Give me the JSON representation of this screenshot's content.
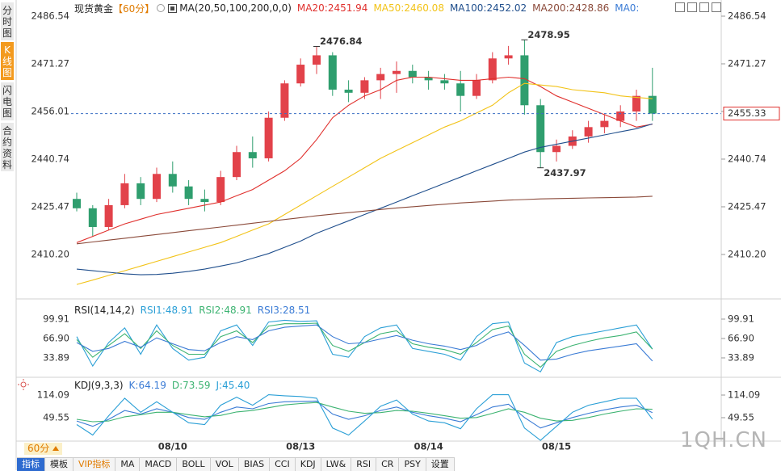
{
  "sidebar": {
    "tabs": [
      "分时图",
      "K线图",
      "闪电图",
      "合约资料"
    ],
    "active": 1
  },
  "toolbar": {
    "items": [
      "指标",
      "模板",
      "VIP指标",
      "MA",
      "MACD",
      "BOLL",
      "VOL",
      "BIAS",
      "CCI",
      "KDJ",
      "LW&",
      "RSI",
      "CR",
      "PSY",
      "设置"
    ],
    "active": 0
  },
  "period_selector": "60分",
  "watermark": "1QH.CN",
  "separator": ":",
  "chart_data": [
    {
      "type": "candlestick",
      "title": "现货黄金",
      "period": "【60分】",
      "indicator": "MA(20,50,100,200,0,0)",
      "extra_legend": "MA0:",
      "categories": [
        null,
        null,
        null,
        null,
        null,
        null,
        "08/10",
        null,
        null,
        null,
        null,
        null,
        null,
        null,
        "08/13",
        null,
        null,
        null,
        null,
        null,
        null,
        null,
        "08/14",
        null,
        null,
        null,
        null,
        null,
        null,
        null,
        "08/15",
        null,
        null,
        null,
        null,
        null,
        null
      ],
      "open": [
        2428,
        2425,
        2419,
        2426,
        2433,
        2428,
        2436,
        2432,
        2428,
        2427,
        2435,
        2443,
        2441,
        2454,
        2465,
        2471,
        2474,
        2463,
        2462,
        2466,
        2468,
        2469,
        2467,
        2466,
        2465,
        2461,
        2466,
        2473,
        2474,
        2458,
        2443,
        2445,
        2448,
        2451,
        2453,
        2456,
        2461
      ],
      "high": [
        2430,
        2426,
        2428,
        2436,
        2435,
        2438,
        2440,
        2434,
        2431,
        2437,
        2445,
        2448,
        2456,
        2466,
        2473,
        2476.84,
        2475,
        2466,
        2467,
        2470,
        2472,
        2471,
        2469,
        2468,
        2469,
        2468,
        2475,
        2477,
        2478.95,
        2460,
        2447,
        2450,
        2453,
        2455,
        2458,
        2463,
        2470
      ],
      "low": [
        2424,
        2416,
        2418,
        2425,
        2426,
        2427,
        2430,
        2426,
        2424,
        2426,
        2434,
        2438,
        2440,
        2453,
        2464,
        2468,
        2461,
        2459,
        2460,
        2460,
        2462,
        2465,
        2463,
        2463,
        2456,
        2460,
        2465,
        2471,
        2455,
        2437.97,
        2440,
        2444,
        2446,
        2449,
        2451,
        2453,
        2453
      ],
      "close": [
        2425,
        2419,
        2426,
        2433,
        2428,
        2436,
        2432,
        2428,
        2427,
        2435,
        2443,
        2441,
        2454,
        2465,
        2471,
        2474,
        2463,
        2462,
        2466,
        2468,
        2469,
        2467,
        2466,
        2465,
        2461,
        2466,
        2473,
        2474,
        2458,
        2443,
        2445,
        2448,
        2451,
        2453,
        2456,
        2461,
        2455.33
      ],
      "up_color": "#e2424a",
      "down_color": "#2f9e6e",
      "series": [
        {
          "name": "MA20",
          "color": "#e0302d",
          "values": [
            2414,
            2416,
            2418,
            2420,
            2421.5,
            2423,
            2424,
            2425,
            2426,
            2427,
            2429,
            2431,
            2434,
            2437,
            2441,
            2447,
            2454,
            2458,
            2461,
            2463,
            2466,
            2467,
            2467,
            2466.5,
            2466,
            2466,
            2466.5,
            2467,
            2466.5,
            2464,
            2461,
            2459,
            2457,
            2455,
            2453,
            2451,
            2451.94
          ]
        },
        {
          "name": "MA50",
          "color": "#f2c318",
          "values": [
            2400.6,
            2402,
            2403.5,
            2405,
            2406.5,
            2408,
            2409.5,
            2411,
            2412.5,
            2414,
            2416,
            2418,
            2420,
            2423,
            2426,
            2429,
            2432,
            2435,
            2438,
            2441,
            2443.5,
            2446,
            2448.5,
            2451,
            2453,
            2455.5,
            2458,
            2462,
            2465,
            2464.5,
            2464,
            2463,
            2462.5,
            2462,
            2461,
            2460.5,
            2460.08
          ]
        },
        {
          "name": "MA100",
          "color": "#1f4e8c",
          "values": [
            2405.5,
            2405,
            2404.5,
            2404,
            2403.7,
            2403.8,
            2404.2,
            2404.8,
            2405.5,
            2406.5,
            2407.5,
            2409,
            2410.5,
            2412.5,
            2414.5,
            2417,
            2419,
            2421,
            2423,
            2425,
            2427,
            2429,
            2431,
            2433,
            2435,
            2437,
            2439,
            2441,
            2443,
            2444.5,
            2445.5,
            2446.5,
            2447.5,
            2448.5,
            2449.5,
            2450.5,
            2452.02
          ]
        },
        {
          "name": "MA200",
          "color": "#8b4a3a",
          "values": [
            2413.6,
            2414.2,
            2414.8,
            2415.4,
            2416,
            2416.6,
            2417.2,
            2417.8,
            2418.4,
            2419,
            2419.6,
            2420.2,
            2420.8,
            2421.4,
            2422,
            2422.6,
            2423.1,
            2423.6,
            2424.1,
            2424.6,
            2425.1,
            2425.5,
            2425.9,
            2426.3,
            2426.7,
            2427,
            2427.3,
            2427.6,
            2427.8,
            2428,
            2428.1,
            2428.2,
            2428.3,
            2428.4,
            2428.5,
            2428.6,
            2428.86
          ]
        }
      ],
      "ylim": [
        2396.48,
        2490.42
      ],
      "yticks": [
        {
          "value": 2410.2,
          "label": "2410.20"
        },
        2425.47,
        2440.74,
        2456.01,
        2471.27,
        2486.54
      ],
      "last_price_line": true
    },
    {
      "type": "line",
      "title": "RSI(14,14,2)",
      "series": [
        {
          "name": "RSI1",
          "color": "#2a9fd6",
          "values": [
            70,
            20,
            60,
            85,
            40,
            90,
            50,
            30,
            35,
            80,
            90,
            55,
            95,
            98,
            96,
            97,
            40,
            35,
            70,
            85,
            90,
            50,
            45,
            40,
            30,
            70,
            92,
            95,
            25,
            10,
            60,
            70,
            75,
            80,
            85,
            90,
            48.91
          ]
        },
        {
          "name": "RSI2",
          "color": "#3cb371",
          "values": [
            65,
            35,
            55,
            75,
            50,
            80,
            55,
            40,
            40,
            70,
            80,
            60,
            88,
            92,
            92,
            93,
            55,
            45,
            60,
            75,
            80,
            58,
            52,
            48,
            40,
            60,
            82,
            88,
            40,
            18,
            45,
            55,
            62,
            68,
            72,
            78,
            48.91
          ]
        },
        {
          "name": "RSI3",
          "color": "#3a7bd5",
          "values": [
            60,
            45,
            50,
            62,
            52,
            68,
            58,
            48,
            46,
            60,
            70,
            65,
            80,
            86,
            88,
            90,
            70,
            58,
            60,
            66,
            72,
            64,
            58,
            54,
            48,
            55,
            70,
            78,
            55,
            30,
            32,
            40,
            46,
            50,
            54,
            58,
            28.51
          ]
        }
      ],
      "ylim": [
        3.6,
        127.4
      ],
      "yticks": [
        33.89,
        {
          "value": 66.9,
          "label": "66.90"
        },
        99.91
      ]
    },
    {
      "type": "line",
      "title": "KDJ(9,3,3)",
      "series": [
        {
          "name": "K",
          "color": "#3a7bd5",
          "values": [
            40,
            25,
            45,
            70,
            60,
            75,
            65,
            50,
            45,
            65,
            80,
            75,
            90,
            95,
            96,
            97,
            60,
            45,
            55,
            70,
            80,
            65,
            55,
            48,
            38,
            58,
            80,
            88,
            50,
            20,
            35,
            50,
            62,
            72,
            80,
            85,
            64.19
          ]
        },
        {
          "name": "D",
          "color": "#3cb371",
          "values": [
            45,
            38,
            40,
            52,
            58,
            65,
            65,
            58,
            52,
            56,
            66,
            70,
            78,
            86,
            90,
            93,
            80,
            68,
            62,
            64,
            70,
            68,
            62,
            55,
            48,
            50,
            62,
            75,
            65,
            48,
            40,
            42,
            50,
            60,
            68,
            75,
            73.59
          ]
        },
        {
          "name": "J",
          "color": "#2a9fd6",
          "values": [
            30,
            0,
            55,
            105,
            65,
            95,
            65,
            35,
            30,
            85,
            108,
            85,
            115,
            112,
            110,
            105,
            20,
            0,
            40,
            82,
            100,
            60,
            40,
            35,
            18,
            75,
            115,
            115,
            20,
            -15,
            25,
            65,
            85,
            95,
            105,
            105,
            45.4
          ],
          "value_labels": [
            null,
            null,
            null,
            null,
            null,
            null,
            null,
            null,
            null,
            null,
            null,
            null,
            null,
            null,
            null,
            null,
            null,
            null,
            null,
            null,
            null,
            null,
            null,
            null,
            null,
            null,
            null,
            null,
            null,
            null,
            null,
            null,
            null,
            null,
            null,
            null,
            "45.40"
          ]
        }
      ],
      "ylim": [
        -21.9,
        157.9
      ],
      "yticks": [
        49.55,
        114.09
      ]
    }
  ]
}
